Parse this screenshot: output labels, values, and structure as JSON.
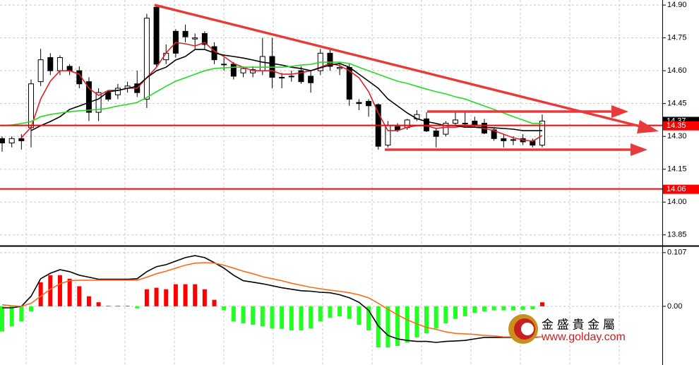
{
  "chart_data": [
    {
      "type": "candlestick",
      "ylim": [
        13.804,
        14.923
      ],
      "yticks": [
        {
          "value": 14.9,
          "label": "14.90"
        },
        14.75,
        {
          "value": 14.6,
          "label": "14.60"
        },
        14.45,
        {
          "value": 14.3,
          "label": "14.30"
        },
        14.15,
        {
          "value": 14.0,
          "label": "14.00"
        },
        13.85
      ],
      "grid": true,
      "up_color": "#ffffff",
      "down_color": "#000000",
      "open": [
        14.29,
        14.27,
        14.29,
        14.34,
        14.55,
        14.66,
        14.6,
        14.62,
        14.6,
        14.55,
        14.41,
        14.5,
        14.49,
        14.52,
        14.54,
        14.47,
        14.89,
        14.65,
        14.78,
        14.78,
        14.745,
        14.77,
        14.71,
        14.63,
        14.63,
        14.59,
        14.59,
        14.6,
        14.665,
        14.57,
        14.575,
        14.6,
        14.575,
        14.6,
        14.68,
        14.61,
        14.615,
        14.455,
        14.46,
        14.445,
        14.26,
        14.345,
        14.34,
        14.38,
        14.38,
        14.325,
        14.31,
        14.36,
        14.36,
        14.37,
        14.36,
        14.33,
        14.29,
        14.285,
        14.29,
        14.28,
        14.26
      ],
      "high": [
        14.3,
        14.3,
        14.31,
        14.56,
        14.7,
        14.68,
        14.67,
        14.63,
        14.62,
        14.57,
        14.52,
        14.51,
        14.54,
        14.55,
        14.6,
        14.86,
        14.9,
        14.72,
        14.79,
        14.81,
        14.77,
        14.78,
        14.73,
        14.66,
        14.64,
        14.62,
        14.62,
        14.75,
        14.75,
        14.59,
        14.6,
        14.62,
        14.6,
        14.7,
        14.7,
        14.63,
        14.63,
        14.47,
        14.47,
        14.45,
        14.37,
        14.36,
        14.38,
        14.42,
        14.41,
        14.34,
        14.37,
        14.41,
        14.41,
        14.39,
        14.38,
        14.34,
        14.31,
        14.3,
        14.31,
        14.29,
        14.4
      ],
      "low": [
        14.23,
        14.25,
        14.24,
        14.25,
        14.53,
        14.58,
        14.58,
        14.58,
        14.52,
        14.37,
        14.37,
        14.46,
        14.47,
        14.5,
        14.48,
        14.43,
        14.62,
        14.63,
        14.66,
        14.73,
        14.7,
        14.7,
        14.63,
        14.6,
        14.56,
        14.57,
        14.57,
        14.58,
        14.52,
        14.52,
        14.55,
        14.54,
        14.5,
        14.58,
        14.6,
        14.58,
        14.44,
        14.42,
        14.39,
        14.24,
        14.25,
        14.32,
        14.33,
        14.37,
        14.32,
        14.25,
        14.3,
        14.35,
        14.34,
        14.34,
        14.31,
        14.28,
        14.25,
        14.26,
        14.26,
        14.25,
        14.25
      ],
      "close": [
        14.27,
        14.29,
        14.28,
        14.54,
        14.65,
        14.6,
        14.66,
        14.6,
        14.54,
        14.41,
        14.5,
        14.47,
        14.52,
        14.53,
        14.5,
        14.84,
        14.63,
        14.68,
        14.68,
        14.755,
        14.75,
        14.72,
        14.65,
        14.63,
        14.575,
        14.61,
        14.605,
        14.665,
        14.57,
        14.57,
        14.575,
        14.55,
        14.545,
        14.68,
        14.62,
        14.615,
        14.47,
        14.45,
        14.44,
        14.255,
        14.35,
        14.33,
        14.375,
        14.4,
        14.325,
        14.3,
        14.36,
        14.375,
        14.36,
        14.35,
        14.315,
        14.29,
        14.28,
        14.285,
        14.275,
        14.26,
        14.37
      ],
      "series": [
        {
          "color": "#e0202a",
          "values": [
            null,
            null,
            14.294,
            14.342,
            14.471,
            14.552,
            14.6,
            14.6,
            14.584,
            14.52,
            14.487,
            14.51,
            14.51,
            14.52,
            14.52,
            14.568,
            14.616,
            14.681,
            14.729,
            14.723,
            14.713,
            14.729,
            14.69,
            14.665,
            14.633,
            14.616,
            14.6,
            14.6,
            14.6,
            14.584,
            14.584,
            14.591,
            14.6,
            14.616,
            14.633,
            14.623,
            14.6,
            14.568,
            14.504,
            14.407,
            14.326,
            14.326,
            14.342,
            14.349,
            14.349,
            14.336,
            14.342,
            14.342,
            14.349,
            14.342,
            14.336,
            14.326,
            14.31,
            14.294,
            14.284,
            14.278,
            14.304
          ]
        },
        {
          "color": "#000000",
          "values": [
            null,
            null,
            null,
            14.326,
            14.349,
            14.368,
            14.39,
            14.423,
            14.439,
            14.455,
            14.471,
            14.504,
            14.51,
            14.52,
            14.529,
            14.568,
            14.6,
            14.616,
            14.649,
            14.665,
            14.697,
            14.697,
            14.681,
            14.671,
            14.665,
            14.658,
            14.649,
            14.639,
            14.633,
            14.626,
            14.616,
            14.61,
            14.6,
            14.613,
            14.626,
            14.633,
            14.616,
            14.584,
            14.552,
            14.52,
            14.471,
            14.439,
            14.407,
            14.381,
            14.368,
            14.359,
            14.349,
            14.349,
            14.342,
            14.342,
            14.342,
            14.339,
            14.336,
            14.333,
            14.326,
            14.326,
            14.326
          ]
        },
        {
          "color": "#22dd22",
          "values": [
            14.349,
            14.352,
            14.359,
            14.368,
            14.39,
            14.4,
            14.407,
            14.413,
            14.417,
            14.42,
            14.423,
            14.429,
            14.439,
            14.446,
            14.455,
            14.478,
            14.504,
            14.529,
            14.552,
            14.568,
            14.584,
            14.6,
            14.61,
            14.613,
            14.616,
            14.616,
            14.616,
            14.616,
            14.616,
            14.616,
            14.62,
            14.626,
            14.629,
            14.639,
            14.639,
            14.639,
            14.633,
            14.616,
            14.6,
            14.584,
            14.568,
            14.552,
            14.542,
            14.529,
            14.516,
            14.504,
            14.494,
            14.481,
            14.471,
            14.455,
            14.439,
            14.423,
            14.407,
            14.39,
            14.375,
            14.359,
            14.359
          ]
        }
      ],
      "levels": [
        14.35,
        14.06
      ],
      "levels_color": "#ff0000",
      "current_price": 14.37
    },
    {
      "type": "macd",
      "ylim": [
        -0.117,
        0.118
      ],
      "yticks": [
        0.107,
        {
          "value": 0,
          "label": "0.00"
        }
      ],
      "up_color": "#ff0000",
      "down_color": "#22ff22",
      "values": [
        -0.05,
        -0.04,
        -0.03,
        -0.01,
        0.048,
        0.062,
        0.062,
        0.055,
        0.04,
        0.02,
        0.008,
        0.001,
        0.001,
        0.001,
        -0.004,
        0.034,
        0.037,
        0.034,
        0.044,
        0.044,
        0.044,
        0.034,
        0.013,
        -0.008,
        -0.03,
        -0.034,
        -0.037,
        -0.04,
        -0.044,
        -0.045,
        -0.048,
        -0.048,
        -0.044,
        -0.03,
        -0.023,
        -0.02,
        -0.025,
        -0.037,
        -0.048,
        -0.082,
        -0.082,
        -0.079,
        -0.072,
        -0.062,
        -0.054,
        -0.044,
        -0.034,
        -0.025,
        -0.02,
        -0.013,
        -0.01,
        -0.008,
        -0.008,
        -0.008,
        -0.007,
        -0.006,
        0.008
      ],
      "series": [
        {
          "color": "#000000",
          "values": [
            -0.003,
            -0.003,
            0,
            0.02,
            0.055,
            0.066,
            0.073,
            0.069,
            0.062,
            0.058,
            0.054,
            0.054,
            0.054,
            0.054,
            0.055,
            0.069,
            0.079,
            0.083,
            0.09,
            0.097,
            0.101,
            0.097,
            0.087,
            0.076,
            0.062,
            0.051,
            0.048,
            0.045,
            0.041,
            0.037,
            0.034,
            0.031,
            0.03,
            0.028,
            0.027,
            0.023,
            0.017,
            0.008,
            -0.008,
            -0.039,
            -0.058,
            -0.065,
            -0.068,
            -0.07,
            -0.07,
            -0.072,
            -0.07,
            -0.069,
            -0.068,
            -0.065,
            -0.062,
            -0.062,
            -0.062,
            -0.062,
            -0.062,
            -0.062,
            -0.061
          ]
        },
        {
          "color": "#ff6a1a",
          "values": [
            0.003,
            0.001,
            0,
            0.006,
            0.02,
            0.034,
            0.045,
            0.051,
            0.052,
            0.052,
            0.052,
            0.052,
            0.052,
            0.052,
            0.052,
            0.058,
            0.065,
            0.07,
            0.076,
            0.082,
            0.086,
            0.087,
            0.086,
            0.082,
            0.076,
            0.07,
            0.065,
            0.059,
            0.055,
            0.051,
            0.046,
            0.042,
            0.038,
            0.035,
            0.032,
            0.03,
            0.027,
            0.023,
            0.017,
            0.006,
            -0.006,
            -0.017,
            -0.027,
            -0.035,
            -0.042,
            -0.046,
            -0.051,
            -0.054,
            -0.055,
            -0.056,
            -0.058,
            -0.059,
            -0.061,
            -0.061,
            -0.061,
            -0.061,
            -0.061
          ]
        }
      ]
    }
  ],
  "watermark": {
    "name": "金 盛 貴 金 屬",
    "url": "www.golday.com"
  }
}
